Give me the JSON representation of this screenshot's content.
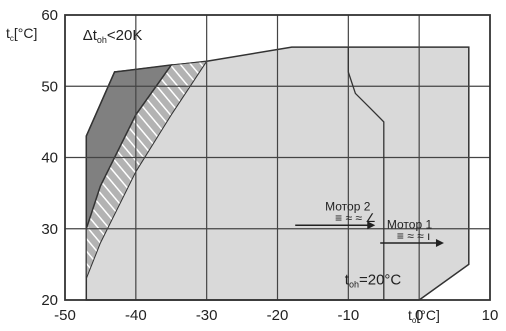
{
  "chart_data": {
    "type": "area",
    "title": "",
    "xlabel_main": "t",
    "xlabel_sub": "o",
    "xlabel_unit": "[°C]",
    "ylabel_main": "t",
    "ylabel_sub": "c",
    "ylabel_unit": "[°C]",
    "xlim": [
      -50,
      10
    ],
    "ylim": [
      20,
      60
    ],
    "xticks": [
      -50,
      -40,
      -30,
      -20,
      -10,
      0,
      10
    ],
    "xtick_labels": [
      "-50",
      "-40",
      "-30",
      "-20",
      "-10",
      "0",
      "10"
    ],
    "yticks": [
      20,
      30,
      40,
      50,
      60
    ],
    "grid": true,
    "colors": {
      "envelope_fill": "#d9d9d9",
      "dark_region": "#808080",
      "hatched_region": "#b3b3b3",
      "line": "#333333"
    },
    "envelope": {
      "name": "",
      "points": [
        [
          -47,
          20
        ],
        [
          -47,
          43
        ],
        [
          -43,
          52
        ],
        [
          -30,
          53.5
        ],
        [
          -18,
          55.5
        ],
        [
          7,
          55.5
        ],
        [
          7,
          25
        ],
        [
          0,
          20
        ]
      ]
    },
    "dark_region": {
      "name": "",
      "points": [
        [
          -47,
          30
        ],
        [
          -47,
          43
        ],
        [
          -43,
          52
        ],
        [
          -35,
          53
        ],
        [
          -40,
          46
        ],
        [
          -45,
          36
        ]
      ]
    },
    "hatched_region": {
      "name": "",
      "points": [
        [
          -47,
          23
        ],
        [
          -47,
          30
        ],
        [
          -45,
          36
        ],
        [
          -40,
          46
        ],
        [
          -35,
          53
        ],
        [
          -30,
          53.5
        ],
        [
          -35,
          46
        ],
        [
          -40,
          38
        ],
        [
          -45,
          28
        ]
      ]
    },
    "motor_boundary_line": {
      "name": "",
      "points": [
        [
          -10,
          55.5
        ],
        [
          -10,
          52
        ],
        [
          -9,
          49
        ],
        [
          -7,
          47
        ],
        [
          -5,
          45
        ],
        [
          -5,
          20
        ]
      ]
    },
    "annotations": [
      {
        "id": "delta",
        "text_main": "Δt",
        "text_sub": "oh",
        "text_tail": "<20K",
        "x": -47.5,
        "y": 56.5
      },
      {
        "id": "toh",
        "text_main": "t",
        "text_sub": "oh",
        "text_tail": "=20°C",
        "x": -10.5,
        "y": 22.2
      },
      {
        "id": "motor2",
        "text": "Мотор 2",
        "sub": "≡ ≈ ≈ ∠",
        "x": -6.5,
        "y": 32,
        "arrow_from": -17.5,
        "arrow_to": -6.2,
        "arrow_y": 30.5
      },
      {
        "id": "motor1",
        "text": "Мотор 1",
        "sub": "≡ ≈ ≈ ı",
        "x": 2.5,
        "y": 29.5,
        "arrow_from": -5.5,
        "arrow_to": 3.5,
        "arrow_y": 28
      }
    ]
  }
}
